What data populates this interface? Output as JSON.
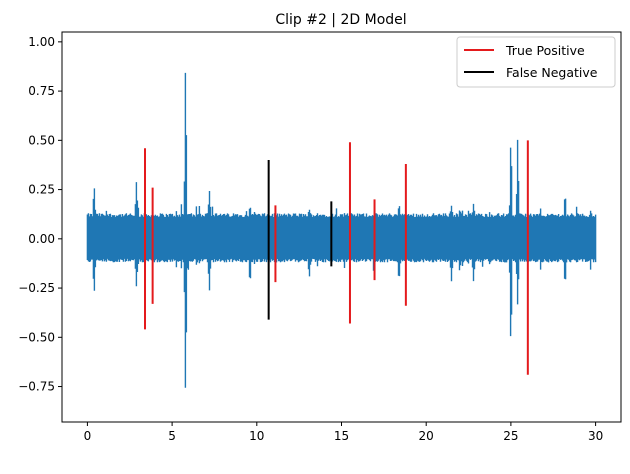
{
  "chart_data": {
    "type": "line",
    "title": "Clip #2 | 2D Model",
    "xlabel": "",
    "ylabel": "",
    "xlim": [
      -1.5,
      31.5
    ],
    "ylim": [
      -0.93,
      1.05
    ],
    "x_ticks": [
      0,
      5,
      10,
      15,
      20,
      25,
      30
    ],
    "y_ticks": [
      -0.75,
      -0.5,
      -0.25,
      0.0,
      0.25,
      0.5,
      0.75,
      1.0
    ],
    "y_tick_labels": [
      "−0.75",
      "−0.50",
      "−0.25",
      "0.00",
      "0.25",
      "0.50",
      "0.75",
      "1.00"
    ],
    "grid": false,
    "legend_position": "top-right",
    "signal": {
      "color": "#1f77b4",
      "x_range": [
        0,
        30
      ],
      "baseline_band": [
        -0.12,
        0.13
      ],
      "peaks": [
        {
          "x": 0.4,
          "max": 0.28,
          "min": -0.29
        },
        {
          "x": 2.9,
          "max": 0.3,
          "min": -0.25
        },
        {
          "x": 5.8,
          "max": 0.96,
          "min": -0.86
        },
        {
          "x": 7.2,
          "max": 0.25,
          "min": -0.27
        },
        {
          "x": 9.6,
          "max": 0.17,
          "min": -0.24
        },
        {
          "x": 13.1,
          "max": 0.15,
          "min": -0.2
        },
        {
          "x": 18.4,
          "max": 0.17,
          "min": -0.22
        },
        {
          "x": 21.5,
          "max": 0.17,
          "min": -0.22
        },
        {
          "x": 22.8,
          "max": 0.18,
          "min": -0.22
        },
        {
          "x": 25.0,
          "max": 0.56,
          "min": -0.6
        },
        {
          "x": 25.4,
          "max": 0.53,
          "min": -0.35
        },
        {
          "x": 28.2,
          "max": 0.24,
          "min": -0.25
        }
      ]
    },
    "series": [
      {
        "name": "True Positive",
        "color": "#e41a1c",
        "segments": [
          {
            "x": 3.4,
            "min": -0.46,
            "max": 0.46
          },
          {
            "x": 3.85,
            "min": -0.33,
            "max": 0.26
          },
          {
            "x": 11.1,
            "min": -0.22,
            "max": 0.17
          },
          {
            "x": 15.5,
            "min": -0.43,
            "max": 0.49
          },
          {
            "x": 16.95,
            "min": -0.21,
            "max": 0.2
          },
          {
            "x": 18.8,
            "min": -0.34,
            "max": 0.38
          },
          {
            "x": 26.0,
            "min": -0.69,
            "max": 0.5
          }
        ]
      },
      {
        "name": "False Negative",
        "color": "#000000",
        "segments": [
          {
            "x": 10.7,
            "min": -0.41,
            "max": 0.4
          },
          {
            "x": 14.4,
            "min": -0.14,
            "max": 0.19
          }
        ]
      }
    ]
  }
}
